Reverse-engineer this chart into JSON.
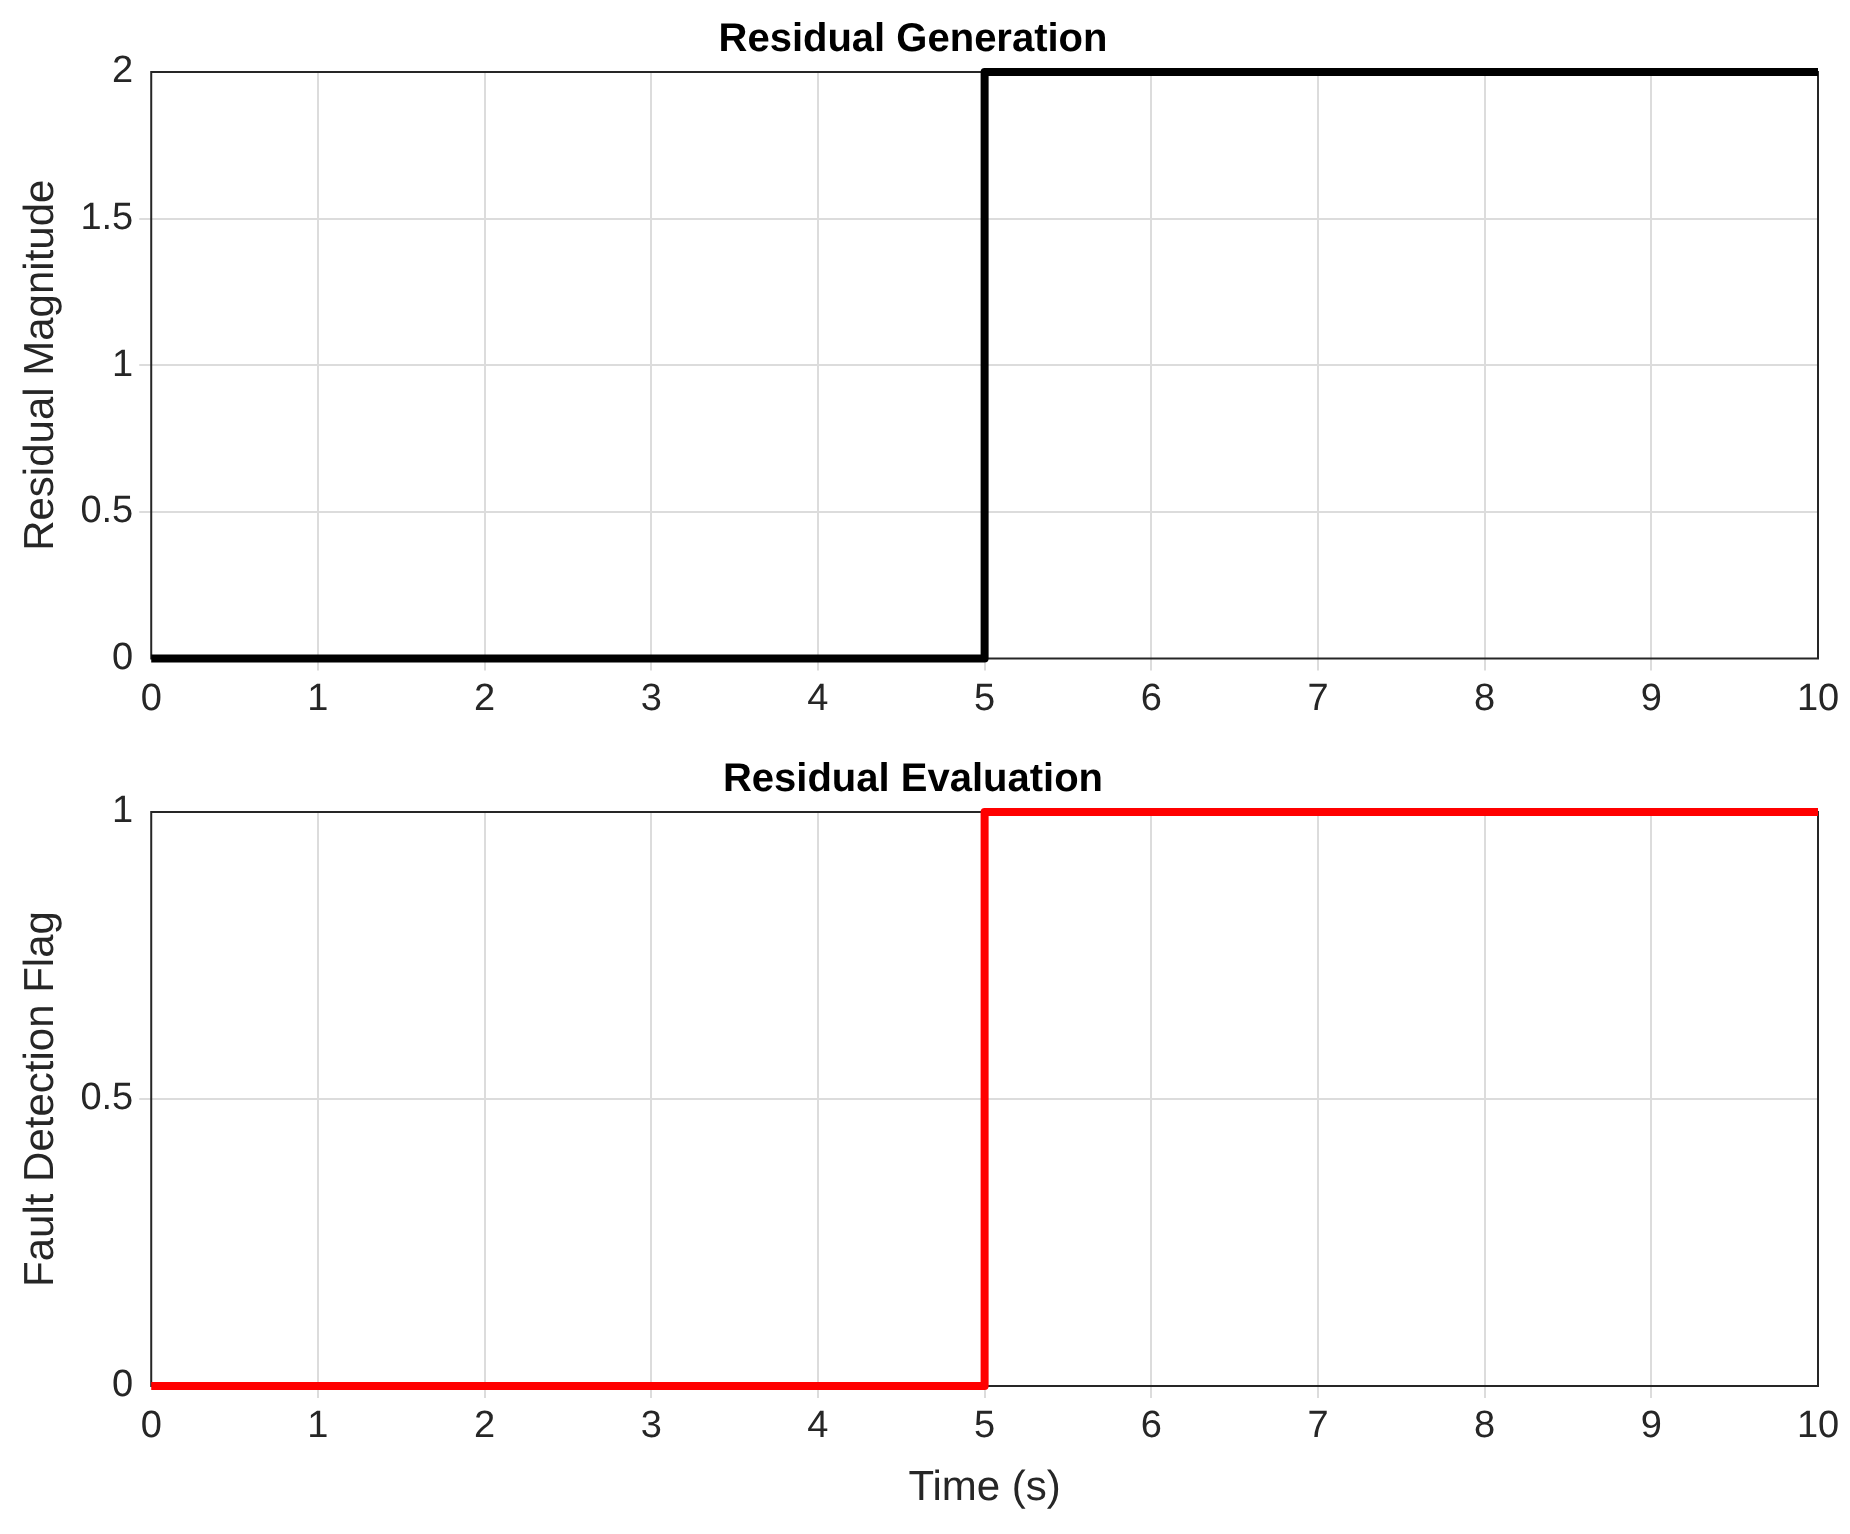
{
  "chart_data": [
    {
      "type": "step",
      "title": "Residual Generation",
      "ylabel": "Residual Magnitude",
      "x": [
        0,
        5,
        10
      ],
      "series": [
        {
          "color": "#000000",
          "values": [
            0,
            2,
            2
          ]
        }
      ],
      "xlim": [
        0,
        10
      ],
      "xticks": [
        0,
        1,
        2,
        3,
        4,
        5,
        6,
        7,
        8,
        9,
        10
      ],
      "ylim": [
        0,
        2
      ],
      "yticks": [
        0,
        0.5,
        1,
        1.5,
        2
      ],
      "grid": true,
      "legend": false
    },
    {
      "type": "step",
      "title": "Residual Evaluation",
      "xlabel": "Time (s)",
      "ylabel": "Fault Detection Flag",
      "x": [
        0,
        5,
        10
      ],
      "series": [
        {
          "color": "#ff0000",
          "values": [
            0,
            1,
            1
          ]
        }
      ],
      "xlim": [
        0,
        10
      ],
      "xticks": [
        0,
        1,
        2,
        3,
        4,
        5,
        6,
        7,
        8,
        9,
        10
      ],
      "ylim": [
        0,
        1
      ],
      "yticks": [
        0,
        0.5,
        1
      ],
      "grid": true,
      "legend": false
    }
  ]
}
